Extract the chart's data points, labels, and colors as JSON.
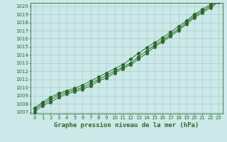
{
  "title": "Graphe pression niveau de la mer (hPa)",
  "x": [
    0,
    1,
    2,
    3,
    4,
    5,
    6,
    7,
    8,
    9,
    10,
    11,
    12,
    13,
    14,
    15,
    16,
    17,
    18,
    19,
    20,
    21,
    22,
    23
  ],
  "line1": [
    1007.0,
    1007.8,
    1008.2,
    1008.8,
    1009.2,
    1009.5,
    1009.8,
    1010.2,
    1010.8,
    1011.2,
    1011.8,
    1012.3,
    1012.8,
    1013.5,
    1014.2,
    1015.0,
    1015.6,
    1016.3,
    1017.0,
    1017.8,
    1018.6,
    1019.2,
    1019.8,
    1020.5
  ],
  "line2": [
    1007.3,
    1008.0,
    1008.5,
    1009.1,
    1009.4,
    1009.7,
    1010.0,
    1010.5,
    1011.0,
    1011.5,
    1012.0,
    1012.5,
    1013.0,
    1013.8,
    1014.5,
    1015.2,
    1015.8,
    1016.5,
    1017.2,
    1018.0,
    1018.8,
    1019.4,
    1020.0,
    1020.6
  ],
  "line3": [
    1007.5,
    1008.2,
    1008.8,
    1009.3,
    1009.6,
    1009.9,
    1010.3,
    1010.8,
    1011.3,
    1011.8,
    1012.3,
    1012.8,
    1013.5,
    1014.2,
    1014.9,
    1015.5,
    1016.1,
    1016.8,
    1017.5,
    1018.2,
    1019.0,
    1019.6,
    1020.2,
    1020.8
  ],
  "line_color": "#2d6a2d",
  "bg_color": "#cce8e8",
  "grid_color": "#a8cece",
  "ylim": [
    1007,
    1020
  ],
  "xlim": [
    0,
    23
  ],
  "yticks": [
    1007,
    1008,
    1009,
    1010,
    1011,
    1012,
    1013,
    1014,
    1015,
    1016,
    1017,
    1018,
    1019,
    1020
  ],
  "xticks": [
    0,
    1,
    2,
    3,
    4,
    5,
    6,
    7,
    8,
    9,
    10,
    11,
    12,
    13,
    14,
    15,
    16,
    17,
    18,
    19,
    20,
    21,
    22,
    23
  ],
  "marker": "*",
  "marker_size": 3.5,
  "line_width": 0.7,
  "tick_fontsize": 5.0,
  "title_fontsize": 6.5,
  "fig_width": 3.2,
  "fig_height": 2.0,
  "dpi": 100
}
